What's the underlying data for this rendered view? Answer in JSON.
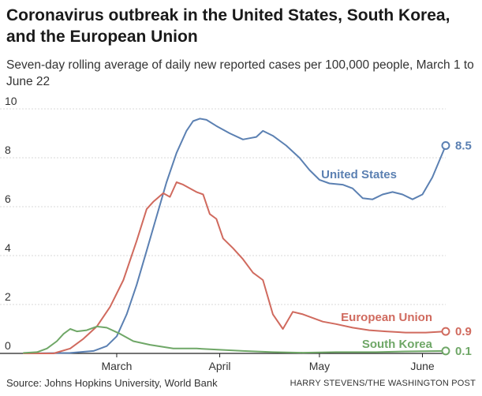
{
  "title": "Coronavirus outbreak in the United States, South Korea, and the European Union",
  "subtitle": "Seven-day rolling average of daily new reported cases per 100,000 people, March 1 to June 22",
  "source": "Source: Johns Hopkins University, World Bank",
  "credit": "HARRY STEVENS/THE WASHINGTON POST",
  "colors": {
    "united_states": "#5b80b2",
    "european_union": "#d06a5e",
    "south_korea": "#6fa767",
    "grid": "#d9d9d9",
    "axis": "#222222"
  },
  "chart_data": {
    "type": "line",
    "x_axis": {
      "unit": "day",
      "start": "2020-02-16",
      "end": "2020-06-22",
      "ticks": [
        {
          "label": "March",
          "date": "2020-03-15"
        },
        {
          "label": "April",
          "date": "2020-04-15"
        },
        {
          "label": "May",
          "date": "2020-05-15"
        },
        {
          "label": "June",
          "date": "2020-06-15"
        }
      ]
    },
    "y_axis": {
      "ylim": [
        0,
        10
      ],
      "ticks": [
        0,
        2,
        4,
        6,
        8,
        10
      ],
      "grid": true
    },
    "series": [
      {
        "name": "United States",
        "end_label": "8.5",
        "x": [
          "2020-02-16",
          "2020-03-01",
          "2020-03-08",
          "2020-03-12",
          "2020-03-15",
          "2020-03-18",
          "2020-03-21",
          "2020-03-24",
          "2020-03-27",
          "2020-03-30",
          "2020-04-02",
          "2020-04-05",
          "2020-04-07",
          "2020-04-09",
          "2020-04-11",
          "2020-04-14",
          "2020-04-18",
          "2020-04-22",
          "2020-04-24",
          "2020-04-26",
          "2020-04-28",
          "2020-05-01",
          "2020-05-05",
          "2020-05-09",
          "2020-05-12",
          "2020-05-15",
          "2020-05-18",
          "2020-05-22",
          "2020-05-25",
          "2020-05-28",
          "2020-05-31",
          "2020-06-03",
          "2020-06-06",
          "2020-06-09",
          "2020-06-12",
          "2020-06-15",
          "2020-06-18",
          "2020-06-22"
        ],
        "y": [
          0.0,
          0.02,
          0.1,
          0.3,
          0.7,
          1.6,
          2.8,
          4.2,
          5.6,
          7.0,
          8.2,
          9.1,
          9.5,
          9.6,
          9.55,
          9.3,
          9.0,
          8.75,
          8.8,
          8.85,
          9.1,
          8.9,
          8.5,
          8.0,
          7.5,
          7.1,
          6.95,
          6.9,
          6.75,
          6.35,
          6.3,
          6.5,
          6.6,
          6.5,
          6.3,
          6.5,
          7.2,
          8.5
        ]
      },
      {
        "name": "European Union",
        "end_label": "0.9",
        "x": [
          "2020-02-16",
          "2020-02-25",
          "2020-03-01",
          "2020-03-05",
          "2020-03-09",
          "2020-03-13",
          "2020-03-17",
          "2020-03-21",
          "2020-03-24",
          "2020-03-26",
          "2020-03-29",
          "2020-03-31",
          "2020-04-02",
          "2020-04-04",
          "2020-04-06",
          "2020-04-08",
          "2020-04-10",
          "2020-04-12",
          "2020-04-14",
          "2020-04-16",
          "2020-04-19",
          "2020-04-22",
          "2020-04-25",
          "2020-04-28",
          "2020-05-01",
          "2020-05-04",
          "2020-05-07",
          "2020-05-10",
          "2020-05-13",
          "2020-05-16",
          "2020-05-20",
          "2020-05-25",
          "2020-05-30",
          "2020-06-04",
          "2020-06-10",
          "2020-06-16",
          "2020-06-22"
        ],
        "y": [
          0.0,
          0.0,
          0.2,
          0.6,
          1.1,
          1.9,
          3.0,
          4.6,
          5.9,
          6.2,
          6.55,
          6.4,
          7.0,
          6.9,
          6.75,
          6.6,
          6.5,
          5.7,
          5.5,
          4.7,
          4.3,
          3.85,
          3.3,
          3.0,
          1.6,
          1.0,
          1.7,
          1.6,
          1.45,
          1.3,
          1.2,
          1.05,
          0.95,
          0.9,
          0.85,
          0.85,
          0.9
        ]
      },
      {
        "name": "South Korea",
        "end_label": "0.1",
        "x": [
          "2020-02-16",
          "2020-02-20",
          "2020-02-23",
          "2020-02-26",
          "2020-02-28",
          "2020-03-01",
          "2020-03-03",
          "2020-03-06",
          "2020-03-09",
          "2020-03-12",
          "2020-03-16",
          "2020-03-20",
          "2020-03-25",
          "2020-04-01",
          "2020-04-08",
          "2020-04-15",
          "2020-04-22",
          "2020-05-01",
          "2020-05-10",
          "2020-05-20",
          "2020-06-01",
          "2020-06-10",
          "2020-06-22"
        ],
        "y": [
          0.02,
          0.05,
          0.2,
          0.5,
          0.8,
          1.0,
          0.9,
          0.95,
          1.1,
          1.05,
          0.8,
          0.5,
          0.35,
          0.2,
          0.2,
          0.15,
          0.1,
          0.05,
          0.03,
          0.05,
          0.05,
          0.08,
          0.1
        ]
      }
    ],
    "labels": [
      {
        "series": "United States",
        "text": "United States"
      },
      {
        "series": "European Union",
        "text": "European Union"
      },
      {
        "series": "South Korea",
        "text": "South Korea"
      }
    ]
  }
}
